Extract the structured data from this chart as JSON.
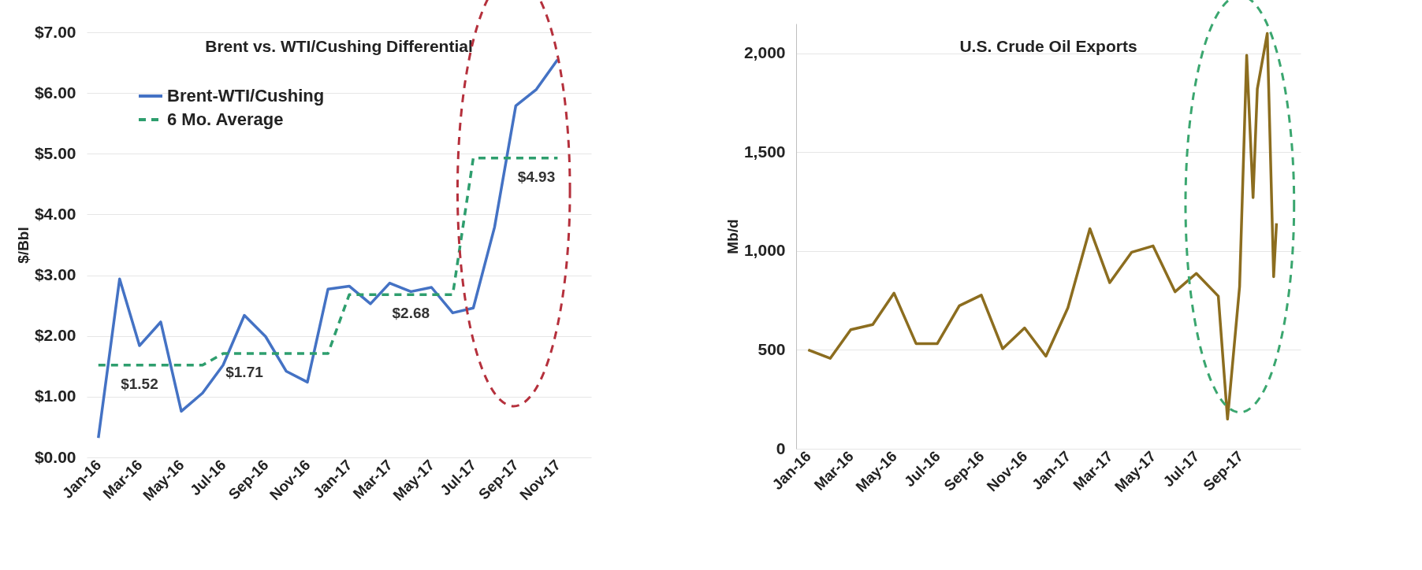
{
  "chart_data": [
    {
      "type": "line",
      "title": "Brent vs. WTI/Cushing Differential",
      "ylabel": "$/Bbl",
      "x": [
        "2016-01",
        "2016-02",
        "2016-03",
        "2016-04",
        "2016-05",
        "2016-06",
        "2016-07",
        "2016-08",
        "2016-09",
        "2016-10",
        "2016-11",
        "2016-12",
        "2017-01",
        "2017-02",
        "2017-03",
        "2017-04",
        "2017-05",
        "2017-06",
        "2017-07",
        "2017-08",
        "2017-09",
        "2017-10",
        "2017-11"
      ],
      "series": [
        {
          "name": "Brent-WTI/Cushing",
          "color": "#4472c4",
          "values": [
            0.32,
            2.94,
            1.84,
            2.23,
            0.76,
            1.06,
            1.52,
            2.34,
            1.99,
            1.42,
            1.24,
            2.77,
            2.82,
            2.53,
            2.87,
            2.73,
            2.8,
            2.38,
            2.46,
            3.79,
            5.79,
            6.06,
            6.55
          ]
        },
        {
          "name": "6 Mo. Average",
          "color": "#2e9e6e",
          "line_style": "dashed",
          "values": [
            1.52,
            1.52,
            1.52,
            1.52,
            1.52,
            1.52,
            1.71,
            1.71,
            1.71,
            1.71,
            1.71,
            1.71,
            2.68,
            2.68,
            2.68,
            2.68,
            2.68,
            2.68,
            4.93,
            4.93,
            4.93,
            4.93,
            4.93
          ],
          "value_labels": [
            null,
            null,
            "$1.52",
            null,
            null,
            null,
            null,
            "$1.71",
            null,
            null,
            null,
            null,
            null,
            null,
            null,
            "$2.68",
            null,
            null,
            null,
            null,
            null,
            "$4.93",
            null
          ]
        }
      ],
      "xlim": [
        "2015-12-15",
        "2017-12-20"
      ],
      "xticks": [
        {
          "value": "2016-01",
          "label": "Jan-16"
        },
        {
          "value": "2016-03",
          "label": "Mar-16"
        },
        {
          "value": "2016-05",
          "label": "May-16"
        },
        {
          "value": "2016-07",
          "label": "Jul-16"
        },
        {
          "value": "2016-09",
          "label": "Sep-16"
        },
        {
          "value": "2016-11",
          "label": "Nov-16"
        },
        {
          "value": "2017-01",
          "label": "Jan-17"
        },
        {
          "value": "2017-03",
          "label": "Mar-17"
        },
        {
          "value": "2017-05",
          "label": "May-17"
        },
        {
          "value": "2017-07",
          "label": "Jul-17"
        },
        {
          "value": "2017-09",
          "label": "Sep-17"
        },
        {
          "value": "2017-11",
          "label": "Nov-17"
        }
      ],
      "ylim": [
        0,
        7
      ],
      "yticks": [
        {
          "value": 0,
          "label": "$0.00"
        },
        {
          "value": 1,
          "label": "$1.00"
        },
        {
          "value": 2,
          "label": "$2.00"
        },
        {
          "value": 3,
          "label": "$3.00"
        },
        {
          "value": 4,
          "label": "$4.00"
        },
        {
          "value": 5,
          "label": "$5.00"
        },
        {
          "value": 6,
          "label": "$6.00"
        },
        {
          "value": 7,
          "label": "$7.00"
        }
      ],
      "grid": "y",
      "legend": "top left"
    },
    {
      "type": "line",
      "title": "U.S. Crude Oil Exports",
      "ylabel": "Mb/d",
      "x": [
        "2016-01",
        "2016-02",
        "2016-03",
        "2016-04",
        "2016-05",
        "2016-06",
        "2016-07",
        "2016-08",
        "2016-09",
        "2016-10",
        "2016-11",
        "2016-12",
        "2017-01",
        "2017-02",
        "2017-03",
        "2017-04",
        "2017-05",
        "2017-06",
        "2017-07",
        "2017-08",
        "2017-08-14",
        "2017-08-31",
        "2017-09-10",
        "2017-09-19",
        "2017-09-25",
        "2017-10-09",
        "2017-10-18",
        "2017-10-22"
      ],
      "series": [
        {
          "color": "#8c6d1f",
          "values": [
            500,
            457,
            602,
            628,
            787,
            532,
            532,
            723,
            777,
            506,
            611,
            468,
            713,
            1113,
            840,
            994,
            1026,
            794,
            887,
            772,
            150,
            820,
            1990,
            1270,
            1820,
            2100,
            870,
            1140
          ]
        }
      ],
      "xlim": [
        "2015-12-15",
        "2017-11-25"
      ],
      "xticks": [
        {
          "value": "2016-01",
          "label": "Jan-16"
        },
        {
          "value": "2016-03",
          "label": "Mar-16"
        },
        {
          "value": "2016-05",
          "label": "May-16"
        },
        {
          "value": "2016-07",
          "label": "Jul-16"
        },
        {
          "value": "2016-09",
          "label": "Sep-16"
        },
        {
          "value": "2016-11",
          "label": "Nov-16"
        },
        {
          "value": "2017-01",
          "label": "Jan-17"
        },
        {
          "value": "2017-03",
          "label": "Mar-17"
        },
        {
          "value": "2017-05",
          "label": "May-17"
        },
        {
          "value": "2017-07",
          "label": "Jul-17"
        },
        {
          "value": "2017-09",
          "label": "Sep-17"
        }
      ],
      "ylim": [
        0,
        2150
      ],
      "yticks": [
        0,
        500,
        {
          "value": 1000,
          "label": "1,000"
        },
        {
          "value": 1500,
          "label": "1,500"
        },
        {
          "value": 2000,
          "label": "2,000"
        }
      ],
      "grid": "y"
    }
  ]
}
